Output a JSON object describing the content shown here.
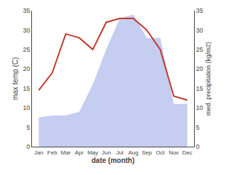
{
  "chart_data": {
    "type": "line",
    "xlabel": "date (month)",
    "ylabel": "max temp (C)",
    "y2label": "med. precipitation (kg/m2)",
    "categories": [
      "Jan",
      "Feb",
      "Mar",
      "Apr",
      "May",
      "Jun",
      "Jul",
      "Aug",
      "Sep",
      "Oct",
      "Nov",
      "Dec"
    ],
    "series": [
      {
        "type": "area",
        "axis": "y2",
        "color": "#c5cdf0",
        "values": [
          7.5,
          8.0,
          8.0,
          9.0,
          16.0,
          25.0,
          33.0,
          34.0,
          28.0,
          28.0,
          11.0,
          11.0
        ]
      },
      {
        "type": "line",
        "color": "#c0392b",
        "values": [
          14.5,
          19.0,
          29.0,
          28.0,
          25.0,
          32.0,
          33.0,
          33.0,
          30.0,
          25.0,
          13.0,
          12.0
        ]
      }
    ],
    "ylim": [
      0,
      35
    ],
    "yticks": [
      0,
      5,
      10,
      15,
      20,
      25,
      30,
      35
    ],
    "y2lim": [
      0,
      35
    ],
    "y2ticks": [
      0,
      5,
      10,
      15,
      20,
      25,
      30,
      35
    ],
    "grid": false
  }
}
